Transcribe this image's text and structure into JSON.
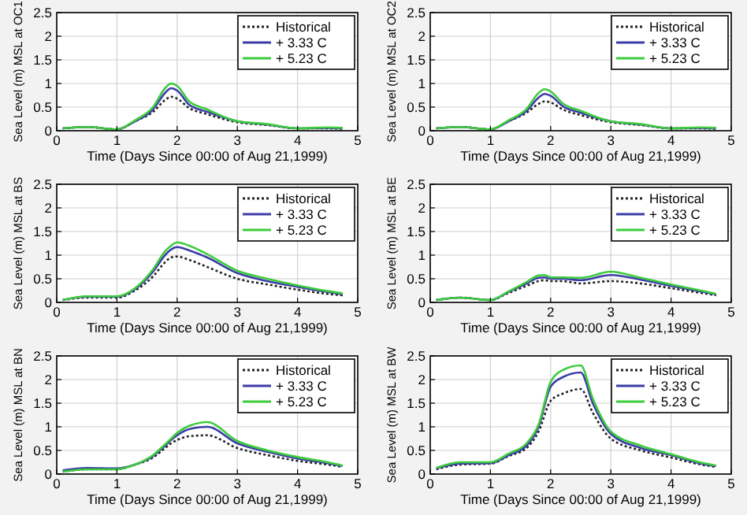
{
  "chart_data": [
    {
      "type": "line",
      "xlabel": "Time (Days Since 00:00 of Aug 21,1999)",
      "ylabel": "Sea Level (m) MSL at OC1",
      "x": [
        0.1,
        0.5,
        1.0,
        1.3,
        1.6,
        1.8,
        1.9,
        2.0,
        2.2,
        2.5,
        3.0,
        3.5,
        4.0,
        4.5,
        4.75
      ],
      "xlim": [
        0,
        5
      ],
      "xticks": [
        0,
        1,
        2,
        3,
        4,
        5
      ],
      "ylim": [
        0,
        2.5
      ],
      "yticks": [
        0,
        0.5,
        1,
        1.5,
        2,
        2.5
      ],
      "grid": true,
      "legend": "top right",
      "series": [
        {
          "name": "Historical",
          "color": "#222222",
          "line_style": "dotted",
          "values": [
            0.05,
            0.08,
            0.03,
            0.2,
            0.4,
            0.65,
            0.72,
            0.68,
            0.48,
            0.35,
            0.18,
            0.12,
            0.05,
            0.05,
            0.04
          ]
        },
        {
          "name": "+ 3.33 C",
          "color": "#3c3ca8",
          "line_style": "solid",
          "values": [
            0.05,
            0.08,
            0.03,
            0.2,
            0.45,
            0.8,
            0.9,
            0.85,
            0.55,
            0.4,
            0.2,
            0.13,
            0.05,
            0.06,
            0.05
          ]
        },
        {
          "name": "+ 5.23 C",
          "color": "#3ccc3c",
          "line_style": "solid",
          "values": [
            0.05,
            0.08,
            0.03,
            0.22,
            0.5,
            0.9,
            1.0,
            0.95,
            0.62,
            0.45,
            0.2,
            0.14,
            0.05,
            0.07,
            0.06
          ]
        }
      ]
    },
    {
      "type": "line",
      "xlabel": "Time (Days Since 00:00 of Aug 21,1999)",
      "ylabel": "Sea Level (m) MSL at OC2",
      "x": [
        0.1,
        0.5,
        1.0,
        1.3,
        1.6,
        1.8,
        1.9,
        2.0,
        2.2,
        2.5,
        3.0,
        3.5,
        4.0,
        4.5,
        4.75
      ],
      "xlim": [
        0,
        5
      ],
      "xticks": [
        0,
        1,
        2,
        3,
        4,
        5
      ],
      "ylim": [
        0,
        2.5
      ],
      "yticks": [
        0,
        0.5,
        1,
        1.5,
        2,
        2.5
      ],
      "grid": true,
      "legend": "top right",
      "series": [
        {
          "name": "Historical",
          "color": "#222222",
          "line_style": "dotted",
          "values": [
            0.05,
            0.08,
            0.03,
            0.2,
            0.38,
            0.57,
            0.62,
            0.6,
            0.45,
            0.33,
            0.18,
            0.12,
            0.05,
            0.05,
            0.04
          ]
        },
        {
          "name": "+ 3.33 C",
          "color": "#3c3ca8",
          "line_style": "solid",
          "values": [
            0.05,
            0.08,
            0.03,
            0.2,
            0.42,
            0.7,
            0.78,
            0.74,
            0.52,
            0.38,
            0.2,
            0.13,
            0.05,
            0.06,
            0.05
          ]
        },
        {
          "name": "+ 5.23 C",
          "color": "#3ccc3c",
          "line_style": "solid",
          "values": [
            0.05,
            0.08,
            0.03,
            0.22,
            0.46,
            0.8,
            0.88,
            0.83,
            0.58,
            0.42,
            0.2,
            0.14,
            0.05,
            0.07,
            0.06
          ]
        }
      ]
    },
    {
      "type": "line",
      "xlabel": "Time (Days Since 00:00 of Aug 21,1999)",
      "ylabel": "Sea Level (m) MSL at BS",
      "x": [
        0.1,
        0.5,
        1.0,
        1.3,
        1.6,
        1.8,
        1.9,
        2.0,
        2.2,
        2.5,
        3.0,
        3.5,
        4.0,
        4.5,
        4.75
      ],
      "xlim": [
        0,
        5
      ],
      "xticks": [
        0,
        1,
        2,
        3,
        4,
        5
      ],
      "ylim": [
        0,
        2.5
      ],
      "yticks": [
        0,
        0.5,
        1,
        1.5,
        2,
        2.5
      ],
      "grid": true,
      "legend": "top right",
      "series": [
        {
          "name": "Historical",
          "color": "#222222",
          "line_style": "dotted",
          "values": [
            0.05,
            0.1,
            0.1,
            0.25,
            0.55,
            0.85,
            0.95,
            0.97,
            0.9,
            0.75,
            0.5,
            0.38,
            0.27,
            0.18,
            0.15
          ]
        },
        {
          "name": "+ 3.33 C",
          "color": "#3c3ca8",
          "line_style": "solid",
          "values": [
            0.05,
            0.12,
            0.12,
            0.28,
            0.65,
            1.0,
            1.12,
            1.17,
            1.1,
            0.95,
            0.62,
            0.45,
            0.33,
            0.22,
            0.17
          ]
        },
        {
          "name": "+ 5.23 C",
          "color": "#3ccc3c",
          "line_style": "solid",
          "values": [
            0.05,
            0.13,
            0.13,
            0.3,
            0.7,
            1.08,
            1.2,
            1.27,
            1.2,
            1.02,
            0.67,
            0.5,
            0.36,
            0.24,
            0.19
          ]
        }
      ]
    },
    {
      "type": "line",
      "xlabel": "Time (Days Since 00:00 of Aug 21,1999)",
      "ylabel": "Sea Level (m) MSL at BE",
      "x": [
        0.1,
        0.5,
        1.0,
        1.3,
        1.6,
        1.8,
        1.9,
        2.0,
        2.2,
        2.5,
        3.0,
        3.5,
        4.0,
        4.5,
        4.75
      ],
      "xlim": [
        0,
        5
      ],
      "xticks": [
        0,
        1,
        2,
        3,
        4,
        5
      ],
      "ylim": [
        0,
        2.5
      ],
      "yticks": [
        0,
        0.5,
        1,
        1.5,
        2,
        2.5
      ],
      "grid": true,
      "legend": "top right",
      "series": [
        {
          "name": "Historical",
          "color": "#222222",
          "line_style": "dotted",
          "values": [
            0.05,
            0.1,
            0.05,
            0.2,
            0.35,
            0.45,
            0.47,
            0.45,
            0.45,
            0.4,
            0.45,
            0.4,
            0.3,
            0.2,
            0.15
          ]
        },
        {
          "name": "+ 3.33 C",
          "color": "#3c3ca8",
          "line_style": "solid",
          "values": [
            0.05,
            0.1,
            0.05,
            0.22,
            0.4,
            0.52,
            0.53,
            0.5,
            0.5,
            0.47,
            0.58,
            0.48,
            0.35,
            0.23,
            0.17
          ]
        },
        {
          "name": "+ 5.23 C",
          "color": "#3ccc3c",
          "line_style": "solid",
          "values": [
            0.05,
            0.1,
            0.05,
            0.23,
            0.43,
            0.57,
            0.58,
            0.53,
            0.53,
            0.52,
            0.65,
            0.52,
            0.38,
            0.25,
            0.18
          ]
        }
      ]
    },
    {
      "type": "line",
      "xlabel": "Time (Days Since 00:00 of Aug 21,1999)",
      "ylabel": "Sea Level (m) MSL at BN",
      "x": [
        0.1,
        0.5,
        1.0,
        1.3,
        1.6,
        1.8,
        1.9,
        2.0,
        2.2,
        2.5,
        3.0,
        3.5,
        4.0,
        4.5,
        4.75
      ],
      "xlim": [
        0,
        5
      ],
      "xticks": [
        0,
        1,
        2,
        3,
        4,
        5
      ],
      "ylim": [
        0,
        2.5
      ],
      "yticks": [
        0,
        0.5,
        1,
        1.5,
        2,
        2.5
      ],
      "grid": true,
      "legend": "top right",
      "series": [
        {
          "name": "Historical",
          "color": "#222222",
          "line_style": "dotted",
          "values": [
            0.05,
            0.1,
            0.1,
            0.2,
            0.35,
            0.55,
            0.65,
            0.72,
            0.8,
            0.82,
            0.55,
            0.4,
            0.28,
            0.2,
            0.15
          ]
        },
        {
          "name": "+ 3.33 C",
          "color": "#3c3ca8",
          "line_style": "solid",
          "values": [
            0.08,
            0.13,
            0.12,
            0.2,
            0.38,
            0.6,
            0.72,
            0.82,
            0.95,
            1.0,
            0.65,
            0.47,
            0.33,
            0.23,
            0.17
          ]
        },
        {
          "name": "+ 5.23 C",
          "color": "#3ccc3c",
          "line_style": "solid",
          "values": [
            0.05,
            0.1,
            0.1,
            0.2,
            0.4,
            0.63,
            0.75,
            0.87,
            1.02,
            1.1,
            0.7,
            0.5,
            0.36,
            0.25,
            0.18
          ]
        }
      ]
    },
    {
      "type": "line",
      "xlabel": "Time (Days Since 00:00 of Aug 21,1999)",
      "ylabel": "Sea Level (m) MSL at BW",
      "x": [
        0.1,
        0.5,
        1.0,
        1.3,
        1.6,
        1.8,
        2.0,
        2.2,
        2.5,
        2.7,
        3.0,
        3.5,
        4.0,
        4.5,
        4.75
      ],
      "xlim": [
        0,
        5
      ],
      "xticks": [
        0,
        1,
        2,
        3,
        4,
        5
      ],
      "ylim": [
        0,
        2.5
      ],
      "yticks": [
        0,
        0.5,
        1,
        1.5,
        2,
        2.5
      ],
      "grid": true,
      "legend": "top right",
      "series": [
        {
          "name": "Historical",
          "color": "#222222",
          "line_style": "dotted",
          "values": [
            0.1,
            0.2,
            0.22,
            0.38,
            0.55,
            0.9,
            1.55,
            1.7,
            1.8,
            1.3,
            0.75,
            0.5,
            0.35,
            0.2,
            0.15
          ]
        },
        {
          "name": "+ 3.33 C",
          "color": "#3c3ca8",
          "line_style": "solid",
          "values": [
            0.12,
            0.22,
            0.23,
            0.4,
            0.6,
            1.0,
            1.85,
            2.05,
            2.15,
            1.5,
            0.85,
            0.55,
            0.4,
            0.22,
            0.17
          ]
        },
        {
          "name": "+ 5.23 C",
          "color": "#3ccc3c",
          "line_style": "solid",
          "values": [
            0.13,
            0.25,
            0.25,
            0.43,
            0.65,
            1.05,
            1.95,
            2.2,
            2.3,
            1.6,
            0.9,
            0.6,
            0.42,
            0.24,
            0.18
          ]
        }
      ]
    }
  ]
}
